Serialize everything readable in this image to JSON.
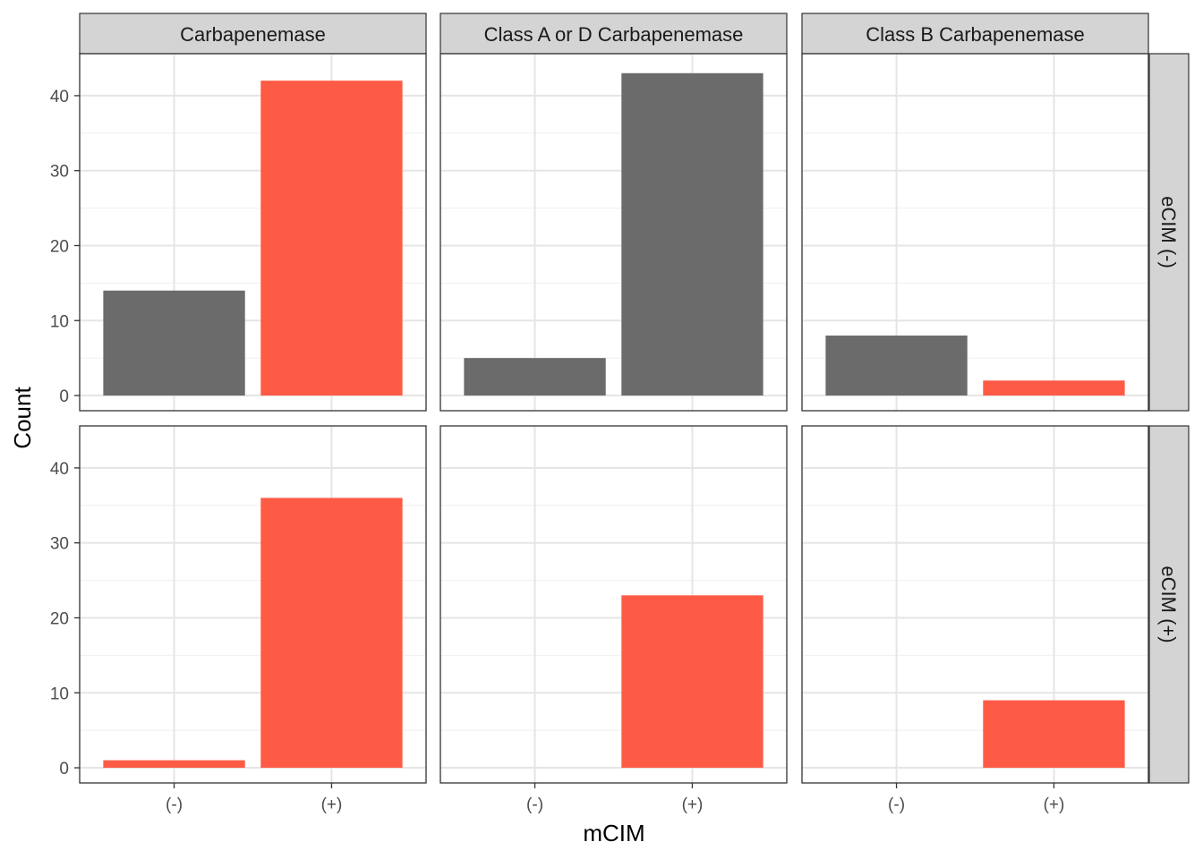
{
  "chart_data": {
    "type": "bar",
    "xlabel": "mCIM",
    "ylabel": "Count",
    "categories": [
      "(-)",
      "(+)"
    ],
    "ylim": [
      0,
      45
    ],
    "yticks": [
      0,
      10,
      20,
      30,
      40
    ],
    "grid": true,
    "column_facets": [
      "Carbapenemase",
      "Class A or D Carbapenemase",
      "Class B Carbapenemase"
    ],
    "row_facets": [
      "eCIM (-)",
      "eCIM (+)"
    ],
    "colors": {
      "grey": "#6b6b6b",
      "red": "#fd5b45"
    },
    "panels": [
      {
        "row": 0,
        "col": 0,
        "values": [
          14,
          42
        ],
        "colors": [
          "grey",
          "red"
        ]
      },
      {
        "row": 0,
        "col": 1,
        "values": [
          5,
          43
        ],
        "colors": [
          "grey",
          "grey"
        ]
      },
      {
        "row": 0,
        "col": 2,
        "values": [
          8,
          2
        ],
        "colors": [
          "grey",
          "red"
        ]
      },
      {
        "row": 1,
        "col": 0,
        "values": [
          1,
          36
        ],
        "colors": [
          "red",
          "red"
        ]
      },
      {
        "row": 1,
        "col": 1,
        "values": [
          0,
          23
        ],
        "colors": [
          "red",
          "red"
        ]
      },
      {
        "row": 1,
        "col": 2,
        "values": [
          0,
          9
        ],
        "colors": [
          "red",
          "red"
        ]
      }
    ]
  }
}
